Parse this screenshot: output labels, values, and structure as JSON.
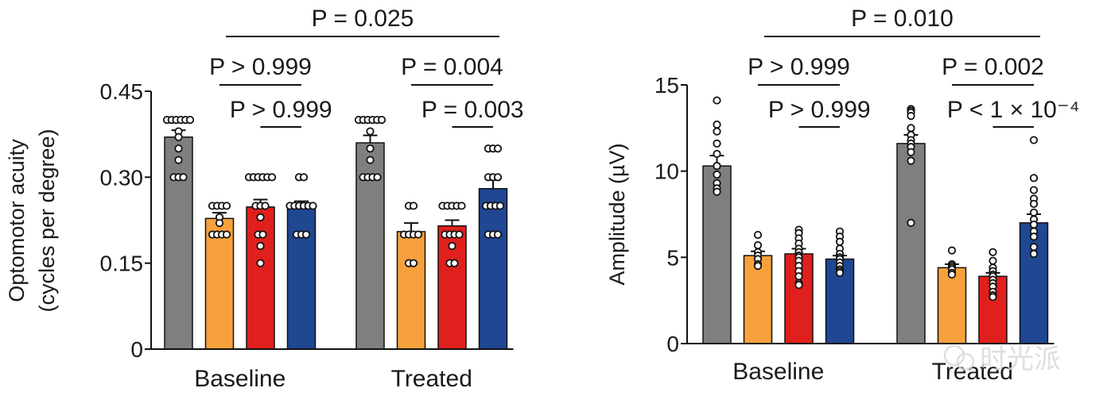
{
  "chart_data": [
    {
      "type": "bar",
      "ylabel_lines": [
        "Optomotor acuity",
        "(cycles per degree)"
      ],
      "ylim": [
        0,
        0.45
      ],
      "yticks": [
        "0",
        "0.15",
        "0.30",
        "0.45"
      ],
      "yticks_values": [
        0,
        0.15,
        0.3,
        0.45
      ],
      "groups": [
        "Baseline",
        "Treated"
      ],
      "series_colors": [
        "#7f7f7f",
        "#f7a13c",
        "#e0201c",
        "#1f4792"
      ],
      "bars": [
        {
          "group": 0,
          "series": 0,
          "value": 0.37,
          "sem": 0.012,
          "points": [
            0.4,
            0.4,
            0.4,
            0.4,
            0.4,
            0.4,
            0.38,
            0.37,
            0.35,
            0.33,
            0.3,
            0.3,
            0.3
          ]
        },
        {
          "group": 0,
          "series": 1,
          "value": 0.228,
          "sem": 0.01,
          "points": [
            0.25,
            0.25,
            0.25,
            0.25,
            0.23,
            0.22,
            0.2,
            0.2,
            0.2,
            0.2
          ]
        },
        {
          "group": 0,
          "series": 2,
          "value": 0.248,
          "sem": 0.013,
          "points": [
            0.3,
            0.3,
            0.3,
            0.3,
            0.3,
            0.3,
            0.25,
            0.25,
            0.25,
            0.23,
            0.2,
            0.2,
            0.18,
            0.15
          ]
        },
        {
          "group": 0,
          "series": 3,
          "value": 0.25,
          "sem": 0.008,
          "points": [
            0.3,
            0.3,
            0.25,
            0.25,
            0.25,
            0.25,
            0.25,
            0.25,
            0.2,
            0.2,
            0.2
          ]
        },
        {
          "group": 1,
          "series": 0,
          "value": 0.36,
          "sem": 0.013,
          "points": [
            0.4,
            0.4,
            0.4,
            0.4,
            0.4,
            0.4,
            0.38,
            0.35,
            0.33,
            0.3,
            0.3,
            0.3,
            0.3
          ]
        },
        {
          "group": 1,
          "series": 1,
          "value": 0.205,
          "sem": 0.015,
          "points": [
            0.25,
            0.25,
            0.2,
            0.2,
            0.2,
            0.2,
            0.15,
            0.15
          ]
        },
        {
          "group": 1,
          "series": 2,
          "value": 0.215,
          "sem": 0.01,
          "points": [
            0.25,
            0.25,
            0.25,
            0.25,
            0.25,
            0.2,
            0.2,
            0.2,
            0.2,
            0.18,
            0.15,
            0.15
          ]
        },
        {
          "group": 1,
          "series": 3,
          "value": 0.28,
          "sem": 0.015,
          "points": [
            0.35,
            0.35,
            0.35,
            0.3,
            0.3,
            0.3,
            0.25,
            0.25,
            0.25,
            0.25,
            0.2,
            0.2,
            0.2
          ]
        }
      ],
      "comparisons": [
        {
          "label": "P = 0.025",
          "from": [
            0,
            1
          ],
          "to": [
            1,
            3
          ],
          "tier": 0
        },
        {
          "label": "P > 0.999",
          "from": [
            0,
            1
          ],
          "to": [
            0,
            3
          ],
          "tier": 1
        },
        {
          "label": "P > 0.999",
          "from": [
            0,
            2
          ],
          "to": [
            0,
            3
          ],
          "tier": 2
        },
        {
          "label": "P = 0.004",
          "from": [
            1,
            1
          ],
          "to": [
            1,
            3
          ],
          "tier": 1
        },
        {
          "label": "P = 0.003",
          "from": [
            1,
            2
          ],
          "to": [
            1,
            3
          ],
          "tier": 2
        }
      ]
    },
    {
      "type": "bar",
      "ylabel_lines": [
        "Amplitude (µV)"
      ],
      "ylim": [
        0,
        15
      ],
      "yticks": [
        "0",
        "5",
        "10",
        "15"
      ],
      "yticks_values": [
        0,
        5,
        10,
        15
      ],
      "groups": [
        "Baseline",
        "Treated"
      ],
      "series_colors": [
        "#7f7f7f",
        "#f7a13c",
        "#e0201c",
        "#1f4792"
      ],
      "bars": [
        {
          "group": 0,
          "series": 0,
          "value": 10.3,
          "sem": 0.6,
          "points": [
            14.1,
            12.7,
            12.3,
            11.6,
            11.0,
            10.3,
            9.8,
            9.3,
            9.0,
            8.8
          ]
        },
        {
          "group": 0,
          "series": 1,
          "value": 5.1,
          "sem": 0.25,
          "points": [
            6.3,
            5.7,
            5.3,
            5.1,
            4.9,
            4.6,
            4.5
          ]
        },
        {
          "group": 0,
          "series": 2,
          "value": 5.2,
          "sem": 0.3,
          "points": [
            6.6,
            6.4,
            6.1,
            5.8,
            5.5,
            5.3,
            5.1,
            5.0,
            4.8,
            4.5,
            4.2,
            3.9,
            3.5,
            3.4
          ]
        },
        {
          "group": 0,
          "series": 3,
          "value": 4.9,
          "sem": 0.2,
          "points": [
            6.5,
            6.2,
            5.9,
            5.5,
            5.2,
            5.0,
            4.9,
            4.7,
            4.5,
            4.3,
            4.2,
            4.1
          ]
        },
        {
          "group": 1,
          "series": 0,
          "value": 11.6,
          "sem": 0.5,
          "points": [
            13.6,
            13.5,
            13.4,
            13.2,
            12.5,
            12.1,
            11.8,
            11.6,
            11.4,
            11.1,
            10.6,
            7.0
          ]
        },
        {
          "group": 1,
          "series": 1,
          "value": 4.4,
          "sem": 0.2,
          "points": [
            5.4,
            4.6,
            4.5,
            4.4,
            4.3,
            4.1,
            4.0
          ]
        },
        {
          "group": 1,
          "series": 2,
          "value": 3.9,
          "sem": 0.2,
          "points": [
            5.3,
            4.8,
            4.4,
            4.2,
            4.0,
            3.9,
            3.7,
            3.5,
            3.3,
            3.0,
            2.8,
            2.7
          ]
        },
        {
          "group": 1,
          "series": 3,
          "value": 7.0,
          "sem": 0.5,
          "points": [
            11.8,
            9.6,
            8.9,
            8.4,
            8.1,
            7.6,
            7.2,
            6.9,
            6.5,
            6.2,
            5.6,
            5.2
          ]
        }
      ],
      "comparisons": [
        {
          "label": "P = 0.010",
          "from": [
            0,
            1
          ],
          "to": [
            1,
            3
          ],
          "tier": 0
        },
        {
          "label": "P > 0.999",
          "from": [
            0,
            1
          ],
          "to": [
            0,
            3
          ],
          "tier": 1
        },
        {
          "label": "P > 0.999",
          "from": [
            0,
            2
          ],
          "to": [
            0,
            3
          ],
          "tier": 2
        },
        {
          "label": "P = 0.002",
          "from": [
            1,
            1
          ],
          "to": [
            1,
            3
          ],
          "tier": 1
        },
        {
          "label": "P < 1 × 10⁻⁴",
          "from": [
            1,
            2
          ],
          "to": [
            1,
            3
          ],
          "tier": 2
        }
      ]
    }
  ],
  "watermark": {
    "text": "时光派",
    "icon": "wechat-icon"
  }
}
